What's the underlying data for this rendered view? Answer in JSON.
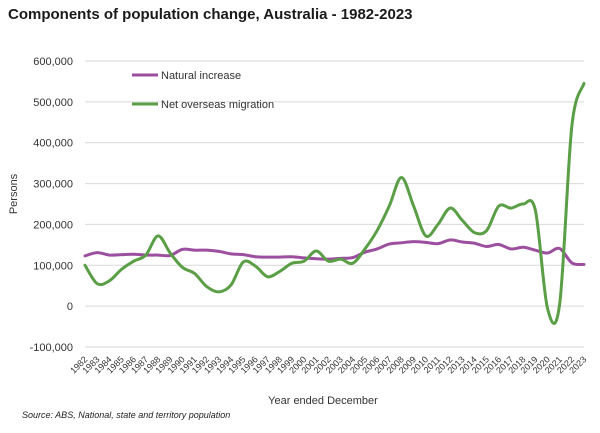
{
  "title": "Components of population change, Australia - 1982-2023",
  "source": "Source: ABS, National, state and territory population",
  "colors": {
    "natural": "#9b4f9e",
    "migration": "#5a9e45",
    "grid": "#d9d9d9",
    "axis": "#444444"
  },
  "chart_data": {
    "type": "line",
    "title": "Components of population change, Australia - 1982-2023",
    "xlabel": "Year ended December",
    "ylabel": "Persons",
    "ylim": [
      -100000,
      600000
    ],
    "yticks": [
      -100000,
      0,
      100000,
      200000,
      300000,
      400000,
      500000,
      600000
    ],
    "ytick_labels": [
      "-100,000",
      "0",
      "100,000",
      "200,000",
      "300,000",
      "400,000",
      "500,000",
      "600,000"
    ],
    "grid": true,
    "legend_position": "top-left",
    "x": [
      "1982",
      "1983",
      "1984",
      "1985",
      "1986",
      "1987",
      "1988",
      "1989",
      "1990",
      "1991",
      "1992",
      "1993",
      "1994",
      "1995",
      "1996",
      "1997",
      "1998",
      "1999",
      "2000",
      "2001",
      "2002",
      "2003",
      "2004",
      "2005",
      "2006",
      "2007",
      "2008",
      "2009",
      "2010",
      "2011",
      "2012",
      "2013",
      "2014",
      "2015",
      "2016",
      "2017",
      "2018",
      "2019",
      "2020",
      "2021",
      "2022",
      "2023"
    ],
    "series": [
      {
        "name": "Natural increase",
        "color": "#9b4f9e",
        "values": [
          123000,
          131000,
          125000,
          126000,
          127000,
          125000,
          125000,
          124000,
          139000,
          137000,
          137000,
          134000,
          128000,
          126000,
          121000,
          120000,
          120000,
          121000,
          118000,
          116000,
          115000,
          117000,
          119000,
          132000,
          140000,
          152000,
          155000,
          158000,
          156000,
          153000,
          162000,
          157000,
          154000,
          146000,
          151000,
          140000,
          144000,
          137000,
          130000,
          141000,
          106000,
          102000
        ]
      },
      {
        "name": "Net overseas migration",
        "color": "#5a9e45",
        "values": [
          100000,
          55000,
          62000,
          90000,
          110000,
          125000,
          172000,
          130000,
          95000,
          80000,
          48000,
          35000,
          52000,
          108000,
          98000,
          72000,
          85000,
          105000,
          110000,
          135000,
          110000,
          115000,
          105000,
          140000,
          185000,
          245000,
          315000,
          245000,
          172000,
          200000,
          240000,
          210000,
          180000,
          185000,
          245000,
          240000,
          250000,
          235000,
          -5000,
          5000,
          440000,
          545000
        ]
      }
    ]
  }
}
